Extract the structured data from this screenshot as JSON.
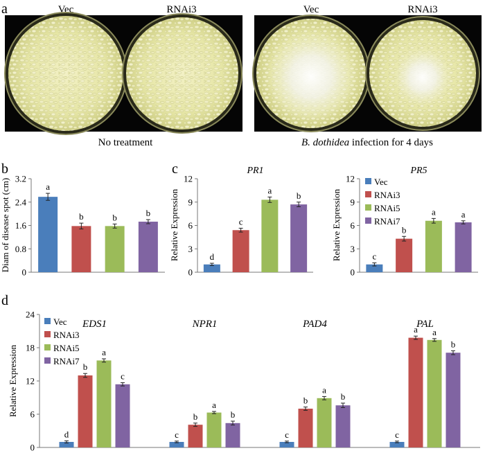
{
  "panels": {
    "a": {
      "letter": "a",
      "photos": [
        {
          "dishes": [
            "Vec",
            "RNAi3"
          ],
          "caption": "No treatment",
          "infected": false
        },
        {
          "dishes": [
            "Vec",
            "RNAi3"
          ],
          "caption_italic": "B. dothidea",
          "caption_rest": " infection for 4 days",
          "infected": true
        }
      ]
    },
    "b": {
      "letter": "b"
    },
    "c": {
      "letter": "c"
    },
    "d": {
      "letter": "d"
    }
  },
  "colors": {
    "Vec": "#4a7ebb",
    "RNAi3": "#c0504d",
    "RNAi5": "#9bbb59",
    "RNAi7": "#8064a2"
  },
  "chart_data": [
    {
      "id": "b",
      "type": "bar",
      "title": "",
      "xlabel": "",
      "ylabel": "Diam of disease spot (cm)",
      "ylim": [
        0,
        3.2
      ],
      "yticks": [
        "0",
        "0.8",
        "1.6",
        "2.4",
        "3.2"
      ],
      "categories": [
        "Vec",
        "RNAi3",
        "RNAi5",
        "RNAi7"
      ],
      "values": [
        2.58,
        1.58,
        1.58,
        1.73
      ],
      "errors": [
        0.12,
        0.1,
        0.07,
        0.07
      ],
      "letters": [
        "a",
        "b",
        "b",
        "b"
      ],
      "legend": "none"
    },
    {
      "id": "c1",
      "type": "bar",
      "title": "PR1",
      "xlabel": "",
      "ylabel": "Relative Expression",
      "ylim": [
        0,
        12
      ],
      "yticks": [
        "0",
        "3",
        "6",
        "9",
        "12"
      ],
      "categories": [
        "Vec",
        "RNAi3",
        "RNAi5",
        "RNAi7"
      ],
      "values": [
        1.0,
        5.4,
        9.3,
        8.7
      ],
      "errors": [
        0.15,
        0.25,
        0.35,
        0.3
      ],
      "letters": [
        "d",
        "c",
        "a",
        "b"
      ],
      "legend": "none"
    },
    {
      "id": "c2",
      "type": "bar",
      "title": "PR5",
      "xlabel": "",
      "ylabel": "Relative Expression",
      "ylim": [
        0,
        12
      ],
      "yticks": [
        "0",
        "3",
        "6",
        "9",
        "12"
      ],
      "categories": [
        "Vec",
        "RNAi3",
        "RNAi5",
        "RNAi7"
      ],
      "values": [
        1.0,
        4.3,
        6.6,
        6.4
      ],
      "errors": [
        0.2,
        0.3,
        0.3,
        0.2
      ],
      "letters": [
        "c",
        "b",
        "a",
        "a"
      ],
      "legend": "top-left",
      "legend_entries": [
        "Vec",
        "RNAi3",
        "RNAi5",
        "RNAi7"
      ]
    },
    {
      "id": "d",
      "type": "bar",
      "title": "",
      "xlabel": "",
      "ylabel": "Relative Expression",
      "ylim": [
        0,
        24
      ],
      "yticks": [
        "0",
        "6",
        "12",
        "18",
        "24"
      ],
      "categories": [
        "EDS1",
        "NPR1",
        "PAD4",
        "PAL"
      ],
      "series": [
        {
          "name": "Vec",
          "values": [
            1.0,
            1.0,
            1.0,
            1.0
          ],
          "errors": [
            0.2,
            0.15,
            0.15,
            0.15
          ],
          "letters": [
            "d",
            "c",
            "c",
            "c"
          ]
        },
        {
          "name": "RNAi3",
          "values": [
            13.0,
            4.1,
            7.0,
            19.8
          ],
          "errors": [
            0.35,
            0.3,
            0.3,
            0.3
          ],
          "letters": [
            "b",
            "b",
            "b",
            "a"
          ]
        },
        {
          "name": "RNAi5",
          "values": [
            15.7,
            6.3,
            8.9,
            19.4
          ],
          "errors": [
            0.3,
            0.2,
            0.3,
            0.25
          ],
          "letters": [
            "a",
            "a",
            "a",
            "a"
          ]
        },
        {
          "name": "RNAi7",
          "values": [
            11.4,
            4.4,
            7.6,
            17.1
          ],
          "errors": [
            0.3,
            0.35,
            0.4,
            0.35
          ],
          "letters": [
            "c",
            "b",
            "b",
            "b"
          ]
        }
      ],
      "legend": "top-left",
      "legend_entries": [
        "Vec",
        "RNAi3",
        "RNAi5",
        "RNAi7"
      ]
    }
  ]
}
